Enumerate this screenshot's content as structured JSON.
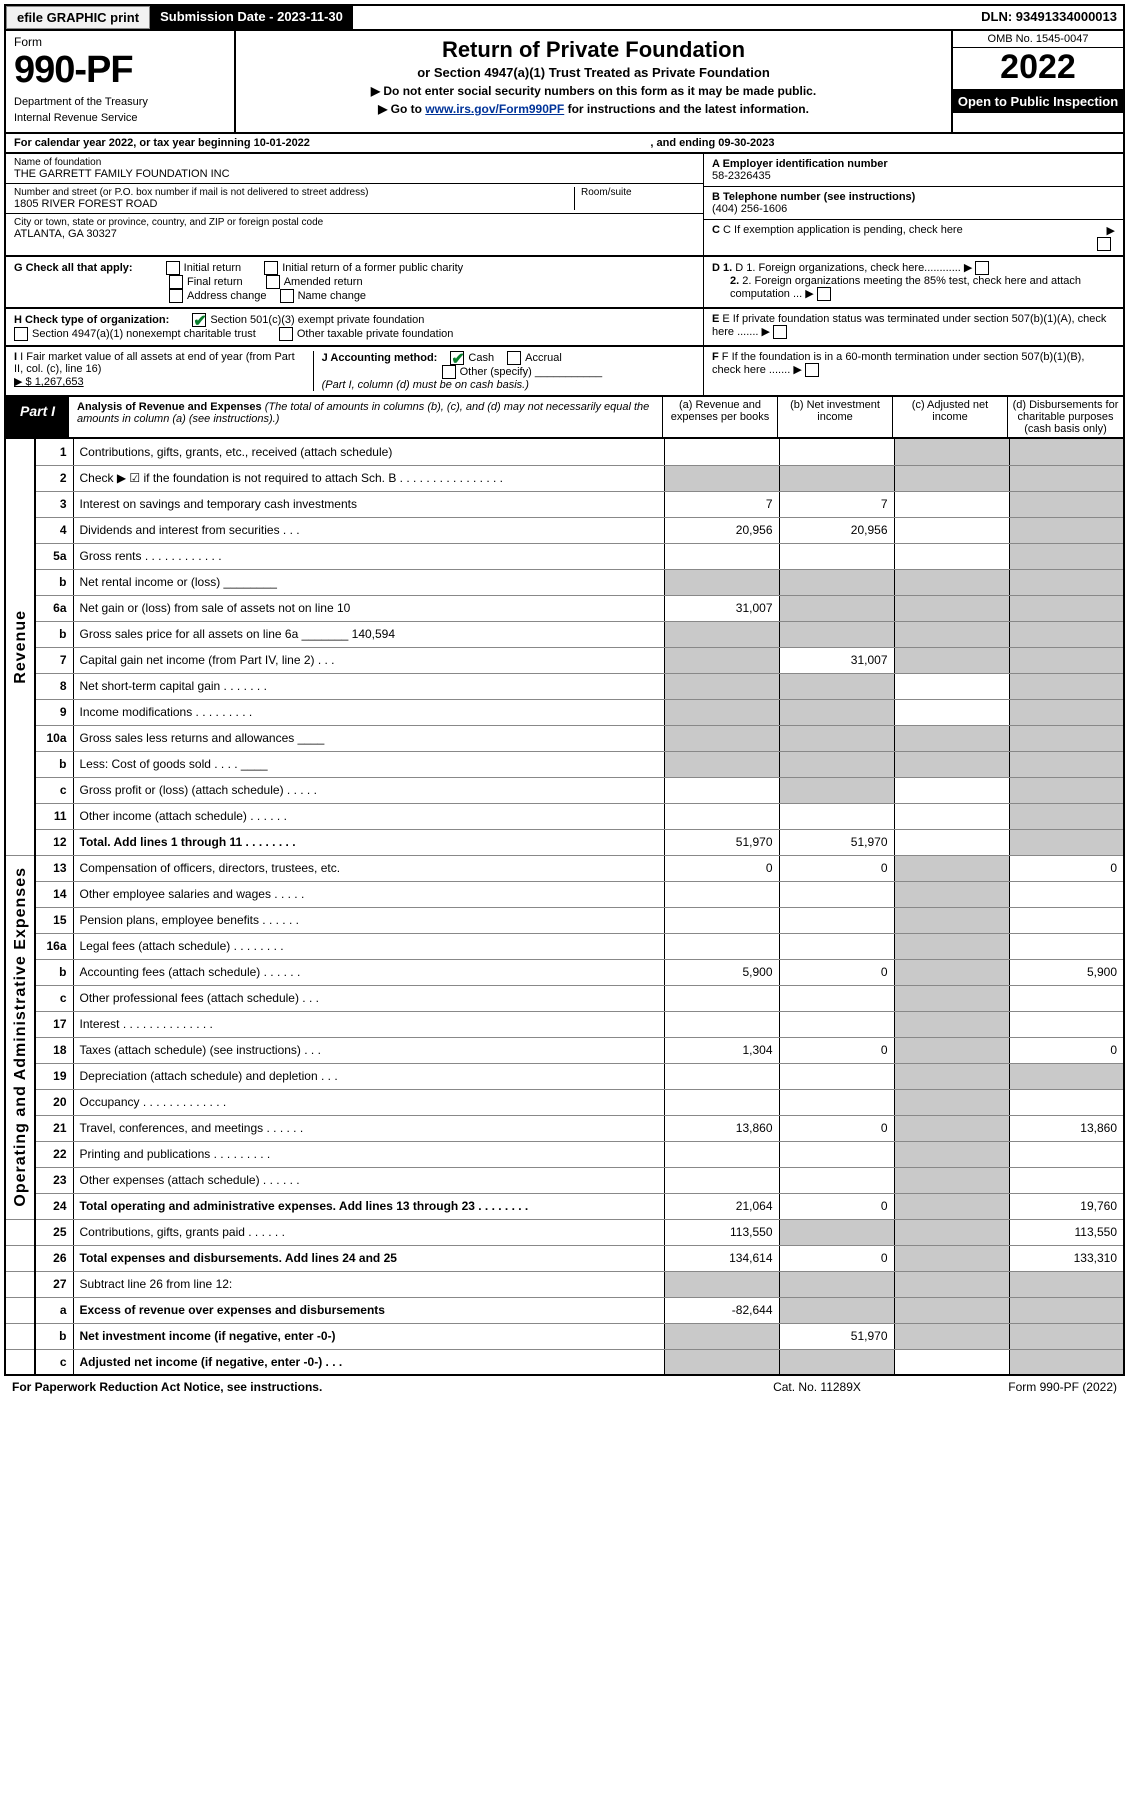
{
  "topbar": {
    "efile": "efile GRAPHIC print",
    "subdate_label": "Submission Date - 2023-11-30",
    "dln": "DLN: 93491334000013"
  },
  "header": {
    "form_word": "Form",
    "form_num": "990-PF",
    "dept": "Department of the Treasury",
    "irs": "Internal Revenue Service",
    "title": "Return of Private Foundation",
    "subtitle": "or Section 4947(a)(1) Trust Treated as Private Foundation",
    "arrow1": "▶ Do not enter social security numbers on this form as it may be made public.",
    "arrow2_pre": "▶ Go to ",
    "arrow2_link": "www.irs.gov/Form990PF",
    "arrow2_post": " for instructions and the latest information.",
    "omb": "OMB No. 1545-0047",
    "year": "2022",
    "open": "Open to Public Inspection"
  },
  "cal": {
    "line_a": "For calendar year 2022, or tax year beginning 10-01-2022",
    "line_b": ", and ending 09-30-2023"
  },
  "id": {
    "name_lbl": "Name of foundation",
    "name_val": "THE GARRETT FAMILY FOUNDATION INC",
    "addr_lbl": "Number and street (or P.O. box number if mail is not delivered to street address)",
    "addr_val": "1805 RIVER FOREST ROAD",
    "room_lbl": "Room/suite",
    "city_lbl": "City or town, state or province, country, and ZIP or foreign postal code",
    "city_val": "ATLANTA, GA  30327",
    "ein_lbl": "A Employer identification number",
    "ein_val": "58-2326435",
    "tel_lbl": "B Telephone number (see instructions)",
    "tel_val": "(404) 256-1606",
    "C": "C If exemption application is pending, check here",
    "D1": "D 1. Foreign organizations, check here............",
    "D2": "2. Foreign organizations meeting the 85% test, check here and attach computation ...",
    "E": "E If private foundation status was terminated under section 507(b)(1)(A), check here .......",
    "F": "F If the foundation is in a 60-month termination under section 507(b)(1)(B), check here .......",
    "G_lbl": "G Check all that apply:",
    "G_opts": [
      "Initial return",
      "Initial return of a former public charity",
      "Final return",
      "Amended return",
      "Address change",
      "Name change"
    ],
    "H_lbl": "H Check type of organization:",
    "H1": "Section 501(c)(3) exempt private foundation",
    "H2": "Section 4947(a)(1) nonexempt charitable trust",
    "H3": "Other taxable private foundation",
    "I_lbl": "I Fair market value of all assets at end of year (from Part II, col. (c), line 16)",
    "I_val": "▶ $  1,267,653",
    "J_lbl": "J Accounting method:",
    "J_cash": "Cash",
    "J_accr": "Accrual",
    "J_other": "Other (specify)",
    "J_note": "(Part I, column (d) must be on cash basis.)"
  },
  "part": {
    "tag": "Part I",
    "title": "Analysis of Revenue and Expenses",
    "note": " (The total of amounts in columns (b), (c), and (d) may not necessarily equal the amounts in column (a) (see instructions).)",
    "cols": {
      "a": "(a)  Revenue and expenses per books",
      "b": "(b)  Net investment income",
      "c": "(c)  Adjusted net income",
      "d": "(d)  Disbursements for charitable purposes (cash basis only)"
    }
  },
  "side": {
    "rev": "Revenue",
    "exp": "Operating and Administrative Expenses"
  },
  "rows": [
    {
      "n": "1",
      "d": "Contributions, gifts, grants, etc., received (attach schedule)",
      "a": "",
      "b": "",
      "c": "s",
      "dd": "s"
    },
    {
      "n": "2",
      "d": "Check ▶ ☑ if the foundation is not required to attach Sch. B   .  .  .  .  .  .  .  .  .  .  .  .  .  .  .  .",
      "a": "s",
      "b": "s",
      "c": "s",
      "dd": "s"
    },
    {
      "n": "3",
      "d": "Interest on savings and temporary cash investments",
      "a": "7",
      "b": "7",
      "c": "",
      "dd": "s"
    },
    {
      "n": "4",
      "d": "Dividends and interest from securities   .  .  .",
      "a": "20,956",
      "b": "20,956",
      "c": "",
      "dd": "s"
    },
    {
      "n": "5a",
      "d": "Gross rents   .  .  .  .  .  .  .  .  .  .  .  .",
      "a": "",
      "b": "",
      "c": "",
      "dd": "s"
    },
    {
      "n": "b",
      "d": "Net rental income or (loss) ________",
      "a": "s",
      "b": "s",
      "c": "s",
      "dd": "s"
    },
    {
      "n": "6a",
      "d": "Net gain or (loss) from sale of assets not on line 10",
      "a": "31,007",
      "b": "s",
      "c": "s",
      "dd": "s"
    },
    {
      "n": "b",
      "d": "Gross sales price for all assets on line 6a _______ 140,594",
      "a": "s",
      "b": "s",
      "c": "s",
      "dd": "s"
    },
    {
      "n": "7",
      "d": "Capital gain net income (from Part IV, line 2)   .  .  .",
      "a": "s",
      "b": "31,007",
      "c": "s",
      "dd": "s"
    },
    {
      "n": "8",
      "d": "Net short-term capital gain   .  .  .  .  .  .  .",
      "a": "s",
      "b": "s",
      "c": "",
      "dd": "s"
    },
    {
      "n": "9",
      "d": "Income modifications  .  .  .  .  .  .  .  .  .",
      "a": "s",
      "b": "s",
      "c": "",
      "dd": "s"
    },
    {
      "n": "10a",
      "d": "Gross sales less returns and allowances  ____",
      "a": "s",
      "b": "s",
      "c": "s",
      "dd": "s"
    },
    {
      "n": "b",
      "d": "Less: Cost of goods sold   .  .  .  .   ____",
      "a": "s",
      "b": "s",
      "c": "s",
      "dd": "s"
    },
    {
      "n": "c",
      "d": "Gross profit or (loss) (attach schedule)   .  .  .  .  .",
      "a": "",
      "b": "s",
      "c": "",
      "dd": "s"
    },
    {
      "n": "11",
      "d": "Other income (attach schedule)   .  .  .  .  .  .",
      "a": "",
      "b": "",
      "c": "",
      "dd": "s"
    },
    {
      "n": "12",
      "d": "Total. Add lines 1 through 11   .  .  .  .  .  .  .  .",
      "a": "51,970",
      "b": "51,970",
      "c": "",
      "dd": "s",
      "bold": true,
      "thick": true
    },
    {
      "n": "13",
      "d": "Compensation of officers, directors, trustees, etc.",
      "a": "0",
      "b": "0",
      "c": "s",
      "dd": "0"
    },
    {
      "n": "14",
      "d": "Other employee salaries and wages   .  .  .  .  .",
      "a": "",
      "b": "",
      "c": "s",
      "dd": ""
    },
    {
      "n": "15",
      "d": "Pension plans, employee benefits  .  .  .  .  .  .",
      "a": "",
      "b": "",
      "c": "s",
      "dd": ""
    },
    {
      "n": "16a",
      "d": "Legal fees (attach schedule)  .  .  .  .  .  .  .  .",
      "a": "",
      "b": "",
      "c": "s",
      "dd": ""
    },
    {
      "n": "b",
      "d": "Accounting fees (attach schedule)  .  .  .  .  .  .",
      "a": "5,900",
      "b": "0",
      "c": "s",
      "dd": "5,900"
    },
    {
      "n": "c",
      "d": "Other professional fees (attach schedule)   .  .  .",
      "a": "",
      "b": "",
      "c": "s",
      "dd": ""
    },
    {
      "n": "17",
      "d": "Interest  .  .  .  .  .  .  .  .  .  .  .  .  .  .",
      "a": "",
      "b": "",
      "c": "s",
      "dd": ""
    },
    {
      "n": "18",
      "d": "Taxes (attach schedule) (see instructions)   .  .  .",
      "a": "1,304",
      "b": "0",
      "c": "s",
      "dd": "0"
    },
    {
      "n": "19",
      "d": "Depreciation (attach schedule) and depletion   .  .  .",
      "a": "",
      "b": "",
      "c": "s",
      "dd": "s"
    },
    {
      "n": "20",
      "d": "Occupancy  .  .  .  .  .  .  .  .  .  .  .  .  .",
      "a": "",
      "b": "",
      "c": "s",
      "dd": ""
    },
    {
      "n": "21",
      "d": "Travel, conferences, and meetings  .  .  .  .  .  .",
      "a": "13,860",
      "b": "0",
      "c": "s",
      "dd": "13,860"
    },
    {
      "n": "22",
      "d": "Printing and publications  .  .  .  .  .  .  .  .  .",
      "a": "",
      "b": "",
      "c": "s",
      "dd": ""
    },
    {
      "n": "23",
      "d": "Other expenses (attach schedule)  .  .  .  .  .  .",
      "a": "",
      "b": "",
      "c": "s",
      "dd": ""
    },
    {
      "n": "24",
      "d": "Total operating and administrative expenses. Add lines 13 through 23   .  .  .  .  .  .  .  .",
      "a": "21,064",
      "b": "0",
      "c": "s",
      "dd": "19,760",
      "bold": true
    },
    {
      "n": "25",
      "d": "Contributions, gifts, grants paid   .  .  .  .  .  .",
      "a": "113,550",
      "b": "s",
      "c": "s",
      "dd": "113,550"
    },
    {
      "n": "26",
      "d": "Total expenses and disbursements. Add lines 24 and 25",
      "a": "134,614",
      "b": "0",
      "c": "s",
      "dd": "133,310",
      "bold": true,
      "thick": true
    },
    {
      "n": "27",
      "d": "Subtract line 26 from line 12:",
      "a": "s",
      "b": "s",
      "c": "s",
      "dd": "s"
    },
    {
      "n": "a",
      "d": "Excess of revenue over expenses and disbursements",
      "a": "-82,644",
      "b": "s",
      "c": "s",
      "dd": "s",
      "bold": true
    },
    {
      "n": "b",
      "d": "Net investment income (if negative, enter -0-)",
      "a": "s",
      "b": "51,970",
      "c": "s",
      "dd": "s",
      "bold": true
    },
    {
      "n": "c",
      "d": "Adjusted net income (if negative, enter -0-)   .  .  .",
      "a": "s",
      "b": "s",
      "c": "",
      "dd": "s",
      "bold": true
    }
  ],
  "footer": {
    "l": "For Paperwork Reduction Act Notice, see instructions.",
    "m": "Cat. No. 11289X",
    "r": "Form 990-PF (2022)"
  },
  "colors": {
    "shade": "#c9c9c9",
    "link": "#003399",
    "check": "#0a7d2c"
  }
}
